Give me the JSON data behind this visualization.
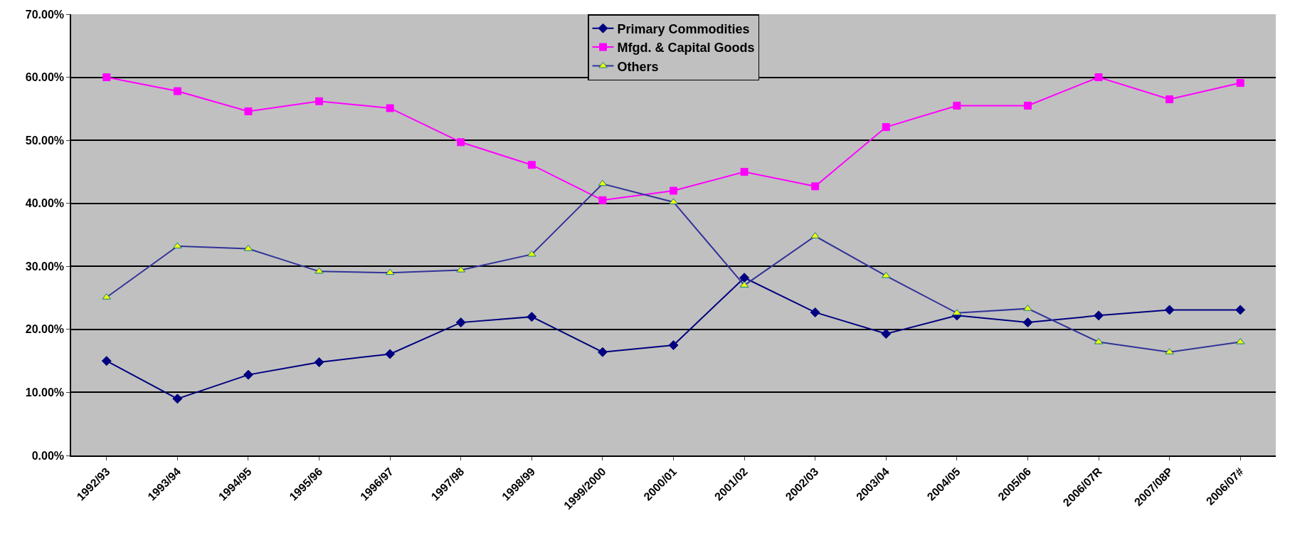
{
  "chart_data": {
    "type": "line",
    "categories": [
      "1992/93",
      "1993/94",
      "1994/95",
      "1995/96",
      "1996/97",
      "1997/98",
      "1998/99",
      "1999/2000",
      "2000/01",
      "2001/02",
      "2002/03",
      "2003/04",
      "2004/05",
      "2005/06",
      "2006/07R",
      "2007/08P",
      "2006/07#"
    ],
    "series": [
      {
        "name": "Primary Commodities",
        "color": "#000080",
        "marker": "diamond",
        "values": [
          15,
          9,
          12.8,
          14.8,
          16.1,
          21.1,
          22,
          16.4,
          17.5,
          28.2,
          22.7,
          19.3,
          22.2,
          21.1,
          22.2,
          23.1,
          23.1
        ]
      },
      {
        "name": "Mfgd. & Capital Goods",
        "color": "#ff00ff",
        "marker": "square",
        "values": [
          60,
          57.8,
          54.6,
          56.2,
          55.1,
          49.7,
          46.1,
          40.5,
          42,
          45,
          42.7,
          52.1,
          55.5,
          55.5,
          60,
          56.5,
          59.1
        ]
      },
      {
        "name": "Others",
        "color": "#333399",
        "marker": "triangle",
        "values": [
          25.1,
          33.2,
          32.8,
          29.2,
          29,
          29.4,
          31.9,
          43.1,
          40.2,
          27,
          34.8,
          28.5,
          22.6,
          23.3,
          18,
          16.4,
          18
        ]
      }
    ],
    "ylim": [
      0,
      70
    ],
    "yticks": [
      {
        "value": 0,
        "label": "0.00%"
      },
      {
        "value": 10,
        "label": "10.00%"
      },
      {
        "value": 20,
        "label": "20.00%"
      },
      {
        "value": 30,
        "label": "30.00%"
      },
      {
        "value": 40,
        "label": "40.00%"
      },
      {
        "value": 50,
        "label": "50.00%"
      },
      {
        "value": 60,
        "label": "60.00%"
      },
      {
        "value": 70,
        "label": "70.00%"
      }
    ],
    "grid": "y",
    "legend": "top"
  }
}
